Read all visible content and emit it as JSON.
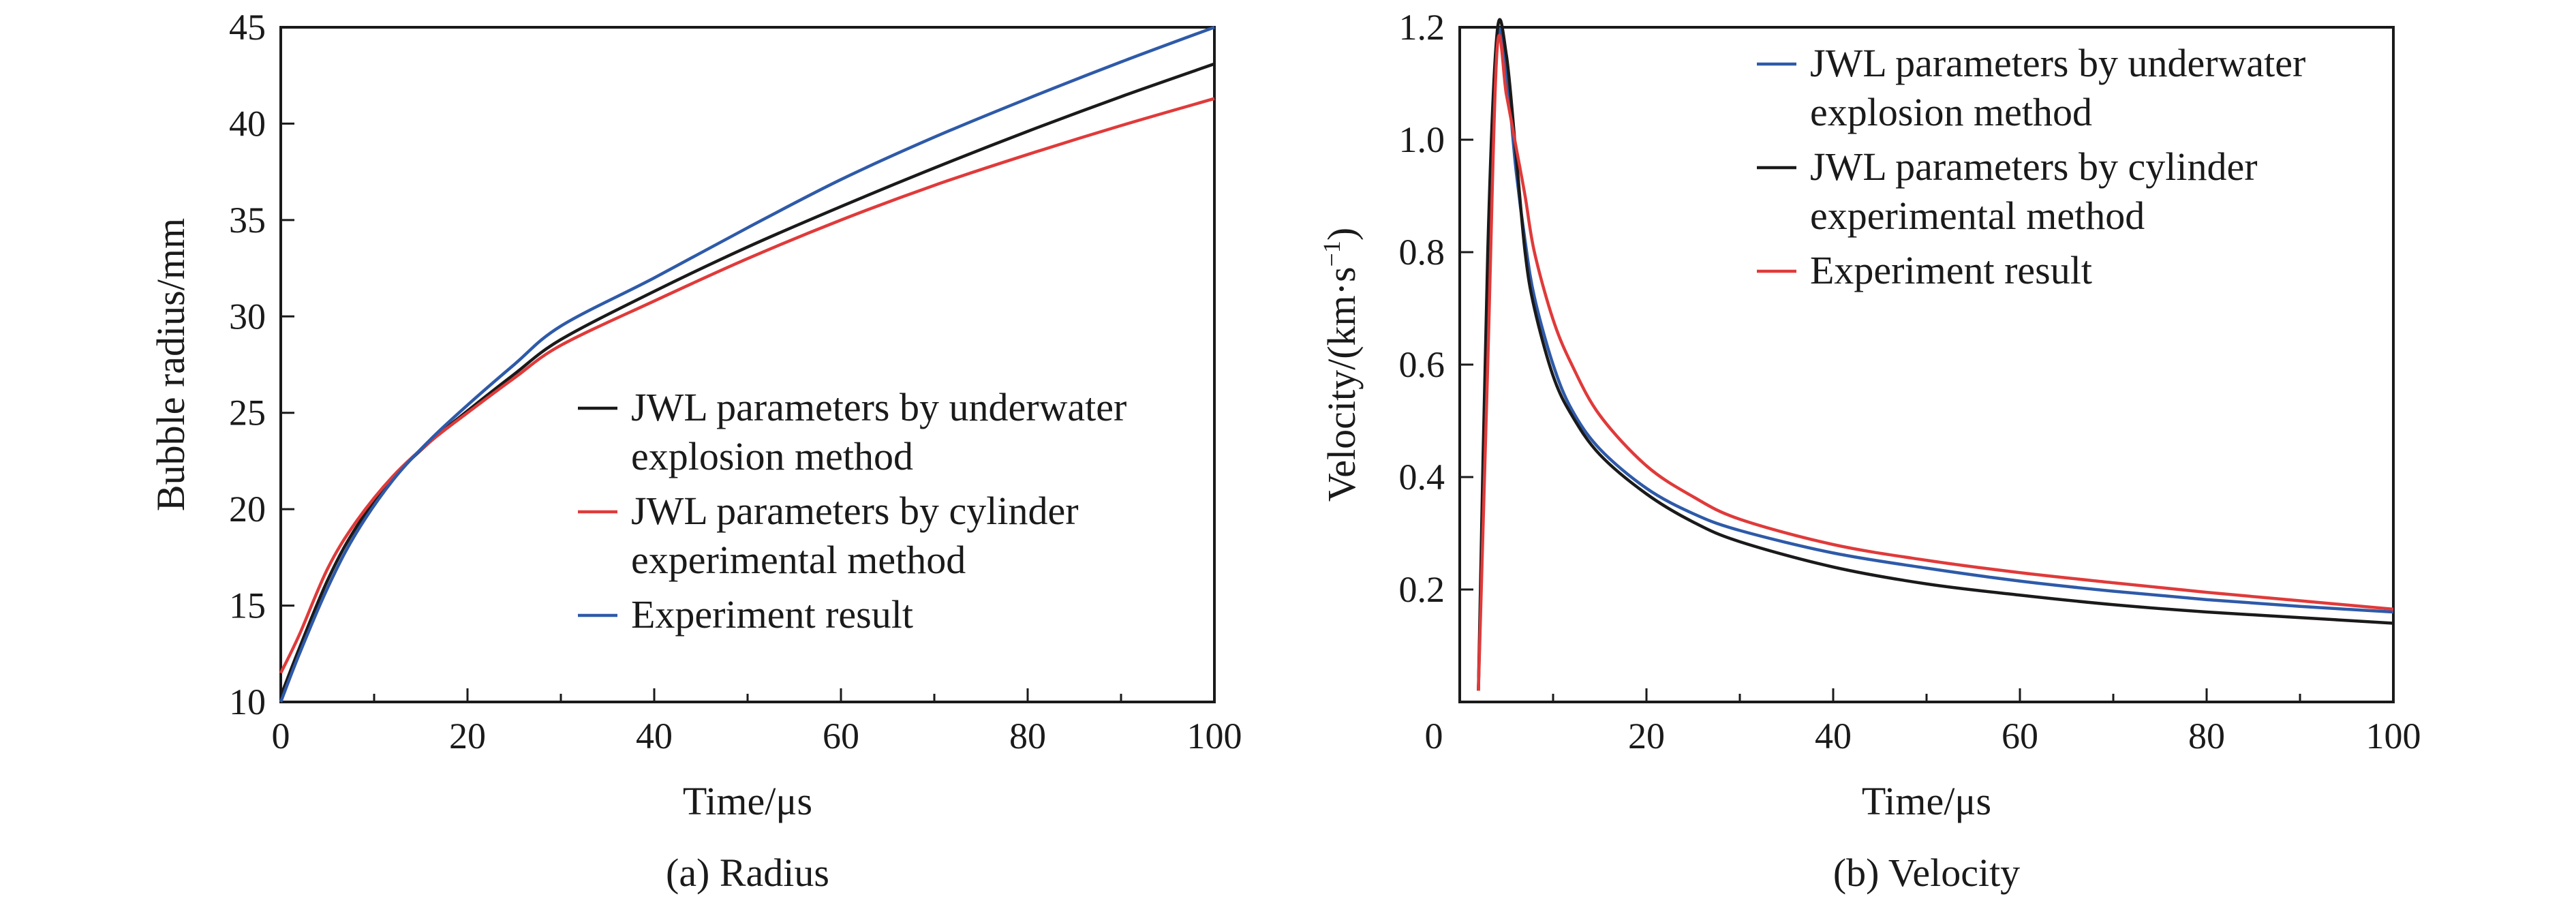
{
  "chart_data": [
    {
      "type": "line",
      "caption": "(a) Radius",
      "xlabel": "Time/μs",
      "ylabel": "Bubble radius/mm",
      "xlim": [
        0,
        100
      ],
      "ylim": [
        10,
        45
      ],
      "xticks": [
        0,
        20,
        40,
        60,
        80,
        100
      ],
      "yticks": [
        10,
        15,
        20,
        25,
        30,
        35,
        40,
        45
      ],
      "grid": false,
      "legend_position": "bottom-right",
      "series": [
        {
          "name": "JWL parameters by underwater explosion method",
          "color": "#1a1a1a",
          "x": [
            0,
            2,
            5,
            8,
            12,
            16,
            20,
            25,
            30,
            40,
            50,
            60,
            70,
            80,
            90,
            100
          ],
          "y": [
            10.3,
            12.8,
            16.3,
            19.0,
            21.6,
            23.5,
            25.1,
            27.0,
            28.8,
            31.3,
            33.6,
            35.7,
            37.7,
            39.6,
            41.4,
            43.1
          ]
        },
        {
          "name": "JWL parameters by cylinder experimental method",
          "color": "#e03a3a",
          "x": [
            0,
            2,
            5,
            8,
            12,
            16,
            20,
            25,
            30,
            40,
            50,
            60,
            70,
            80,
            90,
            100
          ],
          "y": [
            11.5,
            13.5,
            16.9,
            19.3,
            21.7,
            23.5,
            25.0,
            26.8,
            28.5,
            30.8,
            33.0,
            35.0,
            36.8,
            38.4,
            39.9,
            41.3
          ]
        },
        {
          "name": "Experiment result",
          "color": "#2e5aa8",
          "x": [
            0,
            2,
            5,
            8,
            12,
            16,
            20,
            25,
            30,
            40,
            50,
            60,
            70,
            80,
            90,
            100
          ],
          "y": [
            10.0,
            12.5,
            15.9,
            18.7,
            21.5,
            23.6,
            25.4,
            27.5,
            29.5,
            32.0,
            34.6,
            37.1,
            39.3,
            41.3,
            43.2,
            45.0
          ]
        }
      ]
    },
    {
      "type": "line",
      "caption": "(b) Velocity",
      "xlabel": "Time/μs",
      "ylabel": "Velocity/(km·s",
      "ylabel_sup": "−1",
      "ylabel_end": ")",
      "xlim": [
        0,
        100
      ],
      "ylim": [
        0,
        1.2
      ],
      "xticks": [
        20,
        40,
        60,
        80,
        100
      ],
      "xtick_zero": 0,
      "yticks": [
        0.2,
        0.4,
        0.6,
        0.8,
        1.0,
        1.2
      ],
      "ytick_labels": [
        "0.2",
        "0.4",
        "0.6",
        "0.8",
        "1.0",
        "1.2"
      ],
      "grid": false,
      "legend_position": "top-right",
      "series": [
        {
          "name": "JWL parameters by underwater explosion method",
          "color": "#2e5aa8",
          "x": [
            2,
            3,
            4,
            5,
            6,
            7,
            8,
            10,
            12,
            15,
            20,
            25,
            30,
            40,
            50,
            60,
            70,
            80,
            90,
            100
          ],
          "y": [
            0.02,
            0.7,
            1.17,
            1.12,
            0.95,
            0.82,
            0.72,
            0.6,
            0.52,
            0.45,
            0.38,
            0.335,
            0.305,
            0.265,
            0.238,
            0.215,
            0.197,
            0.182,
            0.17,
            0.16
          ]
        },
        {
          "name": "JWL parameters by cylinder experimental method",
          "color": "#1a1a1a",
          "x": [
            2,
            3,
            4,
            5,
            6,
            7,
            8,
            10,
            12,
            15,
            20,
            25,
            30,
            40,
            50,
            60,
            70,
            80,
            90,
            100
          ],
          "y": [
            0.02,
            0.8,
            1.19,
            1.15,
            0.98,
            0.8,
            0.7,
            0.58,
            0.51,
            0.44,
            0.37,
            0.32,
            0.285,
            0.24,
            0.21,
            0.19,
            0.173,
            0.16,
            0.15,
            0.14
          ]
        },
        {
          "name": "Experiment result",
          "color": "#e03a3a",
          "x": [
            2,
            3,
            4,
            5,
            6,
            7,
            8,
            10,
            12,
            15,
            20,
            25,
            30,
            40,
            50,
            60,
            70,
            80,
            90,
            100
          ],
          "y": [
            0.02,
            0.6,
            1.16,
            1.08,
            0.99,
            0.9,
            0.8,
            0.68,
            0.6,
            0.51,
            0.42,
            0.365,
            0.325,
            0.28,
            0.252,
            0.23,
            0.212,
            0.195,
            0.18,
            0.165
          ]
        }
      ]
    }
  ]
}
